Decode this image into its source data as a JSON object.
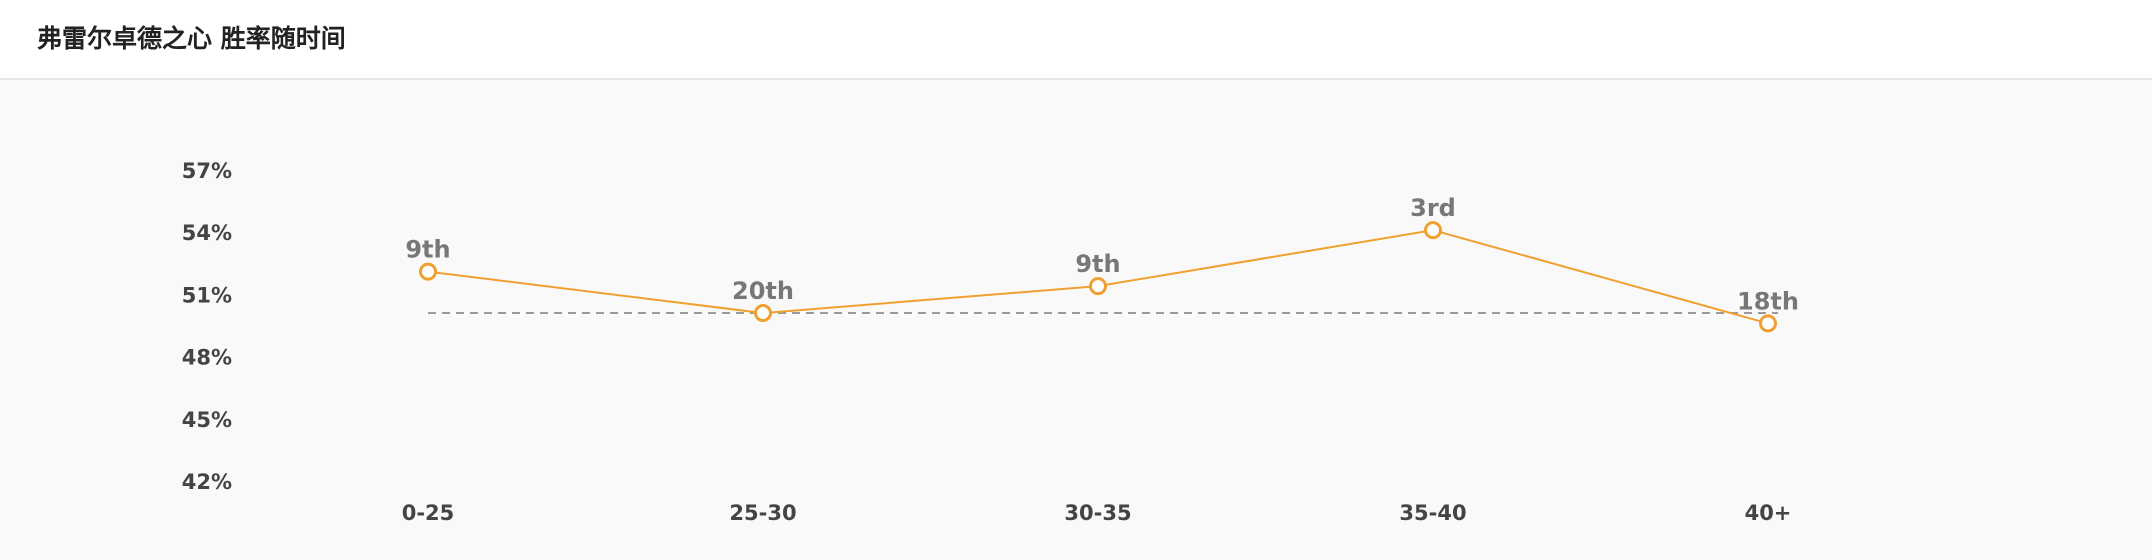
{
  "header": {
    "title": "弗雷尔卓德之心 胜率随时间"
  },
  "colors": {
    "line": "#f0a030",
    "reference_line": "#999999",
    "background": "#f9f9f9"
  },
  "chart_data": {
    "type": "line",
    "title": "弗雷尔卓德之心 胜率随时间",
    "categories": [
      "0-25",
      "25-30",
      "30-35",
      "35-40",
      "40+"
    ],
    "values": [
      52.1,
      50.1,
      51.4,
      54.1,
      49.6
    ],
    "point_labels": [
      "9th",
      "20th",
      "9th",
      "3rd",
      "18th"
    ],
    "reference_value": 50.1,
    "y_ticks": [
      "57%",
      "54%",
      "51%",
      "48%",
      "45%",
      "42%"
    ],
    "ylim": [
      42,
      57
    ],
    "y_unit": "%",
    "grid": false,
    "legend": "none"
  }
}
